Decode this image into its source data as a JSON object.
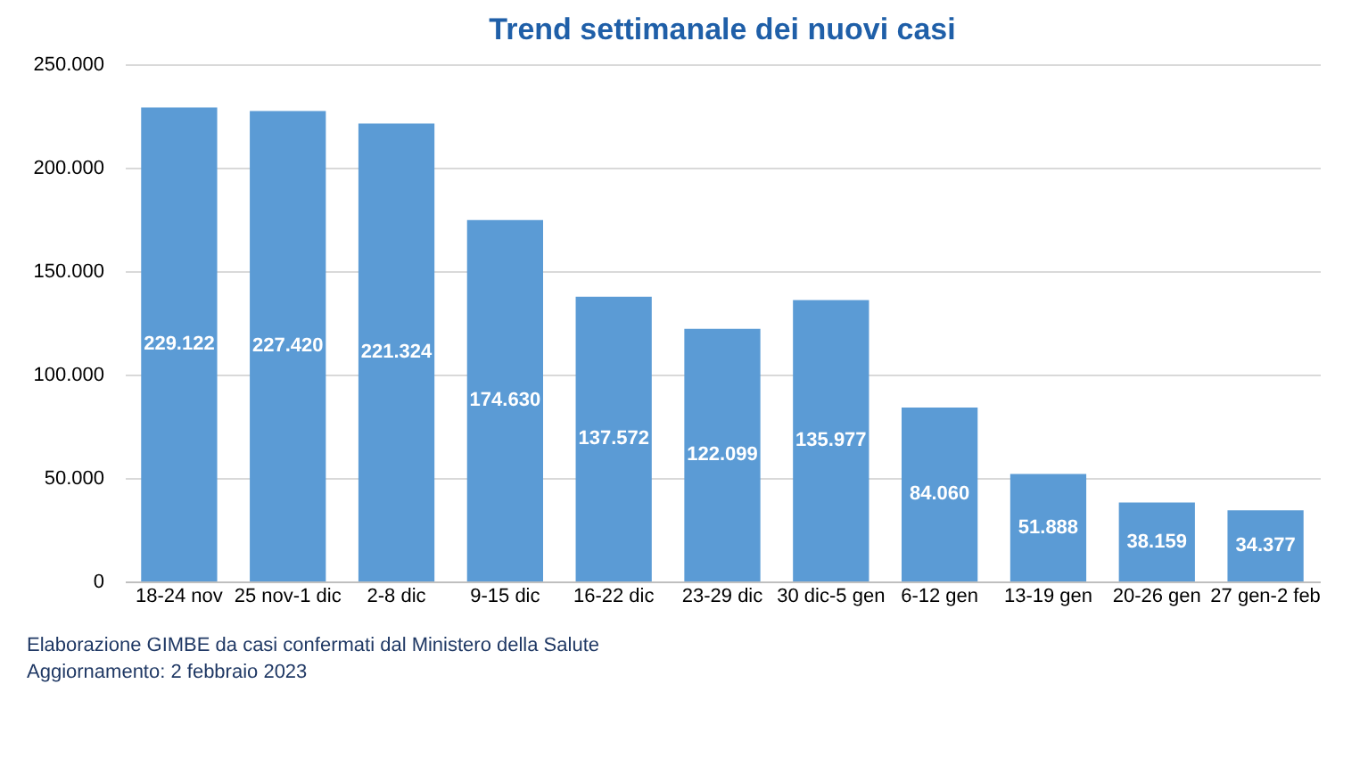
{
  "chart_data": {
    "type": "bar",
    "title": "Trend settimanale dei nuovi casi",
    "categories": [
      "18-24 nov",
      "25 nov-1 dic",
      "2-8 dic",
      "9-15 dic",
      "16-22 dic",
      "23-29 dic",
      "30 dic-5 gen",
      "6-12 gen",
      "13-19 gen",
      "20-26 gen",
      "27 gen-2 feb"
    ],
    "values": [
      229122,
      227420,
      221324,
      174630,
      137572,
      122099,
      135977,
      84060,
      51888,
      38159,
      34377
    ],
    "value_labels": [
      "229.122",
      "227.420",
      "221.324",
      "174.630",
      "137.572",
      "122.099",
      "135.977",
      "84.060",
      "51.888",
      "38.159",
      "34.377"
    ],
    "color": "#5b9bd5",
    "ylim": [
      0,
      250000
    ],
    "yticks": [
      0,
      {
        "value": 50000,
        "label": "50.000"
      },
      {
        "value": 100000,
        "label": "100.000"
      },
      {
        "value": 150000,
        "label": "150.000"
      },
      {
        "value": 200000,
        "label": "200.000"
      },
      {
        "value": 250000,
        "label": "250.000"
      }
    ],
    "grid": "y",
    "annotations": [
      "Elaborazione GIMBE da casi confermati dal Ministero della Salute",
      "Aggiornamento: 2 febbraio 2023"
    ]
  }
}
